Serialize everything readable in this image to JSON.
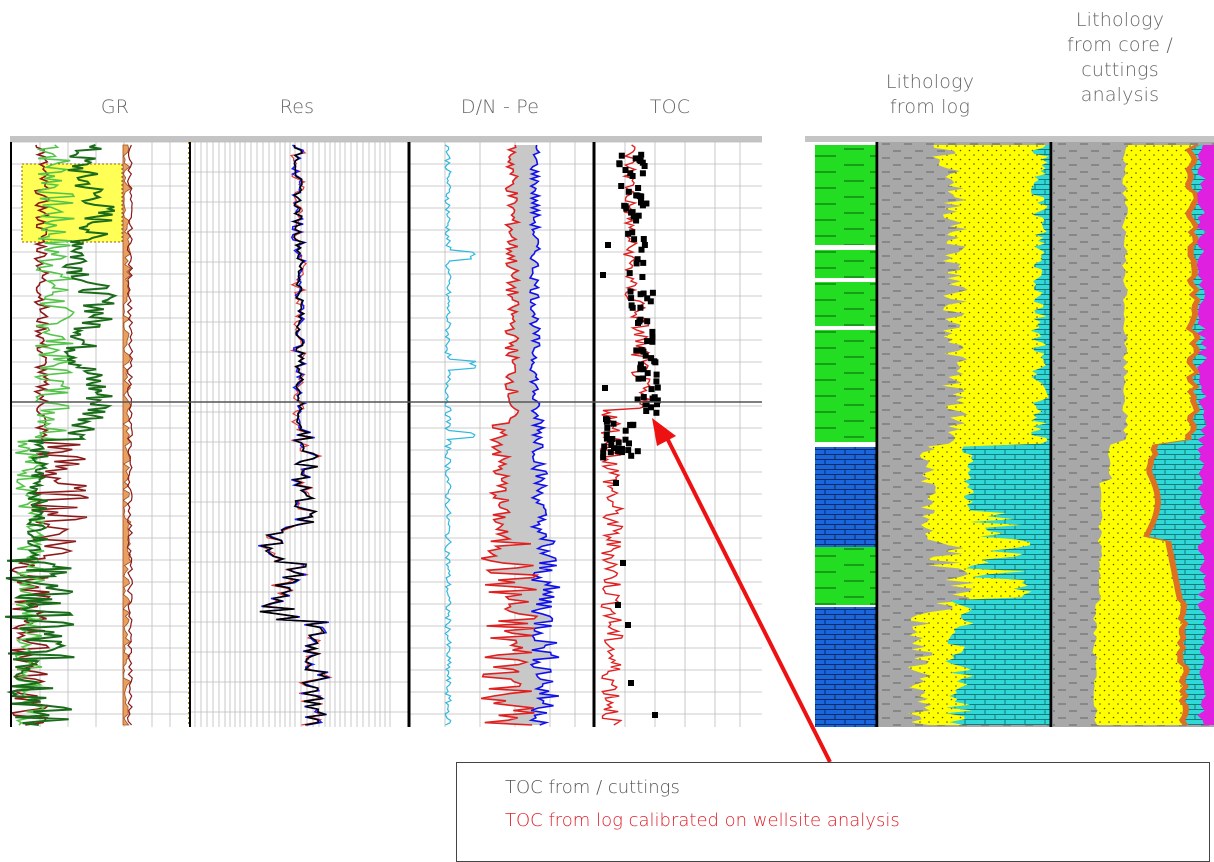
{
  "headers": {
    "gr": "GR",
    "res": "Res",
    "dnpe": "D/N - Pe",
    "toc": "TOC",
    "lith_log": "Lithology\nfrom log",
    "lith_core": "Lithology\nfrom core /\ncuttings\nanalysis"
  },
  "legend": {
    "line1": "TOC from / cuttings",
    "line2": "TOC from log calibrated on wellsite analysis",
    "line1_color": "#555555",
    "line2_color": "#e0202a"
  },
  "colors": {
    "gr_dark_green": "#1a6b1a",
    "gr_light_green": "#55c44a",
    "gr_brown": "#8b1a1a",
    "gr_orange": "#e8a060",
    "gr_highlight": "#ffff55",
    "res_blue": "#1a1aff",
    "res_black": "#000000",
    "res_red": "#e04040",
    "dn_cyan": "#30b8e0",
    "dn_red": "#e02020",
    "dn_blue": "#1010ee",
    "dn_fill": "#c8c8c8",
    "toc_red": "#e02020",
    "toc_points": "#000000",
    "shale": "#a8a8a8",
    "sand": "#ffff00",
    "carbonate": "#30d8d8",
    "lith_green": "#22dd22",
    "lith_blue": "#1a66dd",
    "core_orange": "#e07020",
    "core_magenta": "#e020e0",
    "arrow": "#ee1111"
  },
  "chart_data": {
    "type": "line",
    "tracks": [
      "GR",
      "Res",
      "D/N - Pe",
      "TOC",
      "Lithology from log",
      "Lithology from core / cuttings analysis"
    ],
    "toc_points_shown": true,
    "annotation_arrow": "from legend box to TOC track"
  }
}
